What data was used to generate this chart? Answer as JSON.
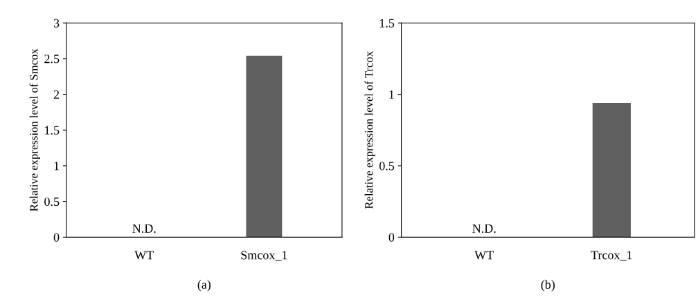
{
  "chart_data": [
    {
      "type": "bar",
      "ylabel": "Relative expression level of Smcox",
      "categories": [
        "WT",
        "Smcox_1"
      ],
      "values": [
        null,
        2.54
      ],
      "color": "#5f5f5f",
      "ylim": [
        0,
        3
      ],
      "yticks": [
        0,
        0.5,
        1,
        1.5,
        2,
        2.5,
        3
      ],
      "grid": false,
      "annotations": [
        "N.D.",
        "(a)"
      ]
    },
    {
      "type": "bar",
      "ylabel": "Relative expression level of Trcox",
      "categories": [
        "WT",
        "Trcox_1"
      ],
      "values": [
        null,
        0.94
      ],
      "color": "#5f5f5f",
      "ylim": [
        0,
        1.5
      ],
      "yticks": [
        0,
        0.5,
        1,
        1.5
      ],
      "grid": false,
      "annotations": [
        "N.D.",
        "(b)"
      ]
    }
  ]
}
